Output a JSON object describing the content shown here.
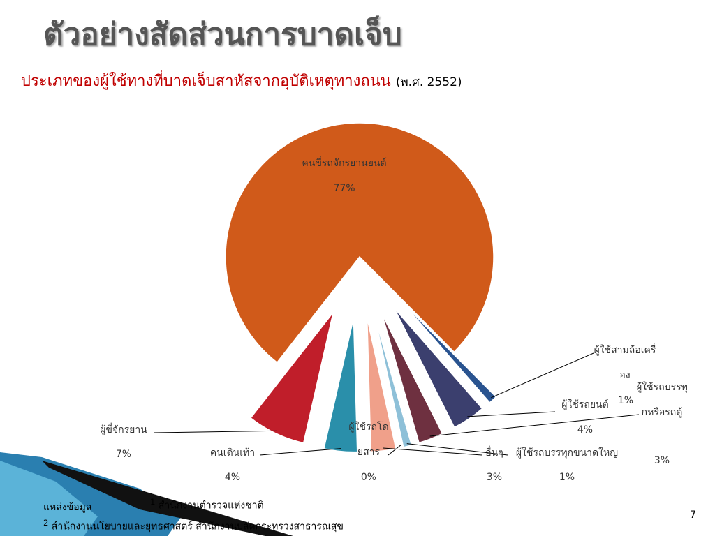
{
  "slide_title": "ตัวอย่างสัดส่วนการบาดเจ็บ",
  "chart_data": {
    "type": "pie",
    "title": "ประเภทของผู้ใช้ทางที่บาดเจ็บสาหัสจากอุบัติเหตุทางถนน",
    "subtitle": "(พ.ศ. 2552)",
    "categories": [
      "คนขี่รถจักรยานยนต์",
      "ผู้ใช้สามล้อเครื่อง",
      "ผู้ใช้รถยนต์",
      "ผู้ใช้รถบรรทุกหรือรถตู้",
      "ผู้ใช้รถบรรทุกขนาดใหญ่",
      "ผู้ใช้รถโดยสาร",
      "อื่นๆ",
      "คนเดินเท้า",
      "ผู้ขี่จักรยาน"
    ],
    "values": [
      77,
      1,
      4,
      3,
      1,
      0,
      3,
      4,
      7
    ],
    "value_labels": [
      "77%",
      "1%",
      "4%",
      "3%",
      "1%",
      "0%",
      "3%",
      "4%",
      "7%"
    ],
    "colors": [
      "#d05a1a",
      "#2a5490",
      "#3b3f6e",
      "#6e3040",
      "#8ec0d8",
      "#8a2020",
      "#f0a08a",
      "#2a8faa",
      "#c01e2a"
    ],
    "start_angle": 218,
    "exploded": true
  },
  "sources": {
    "heading": "แหล่งข้อมูล",
    "items": [
      {
        "number": "1",
        "text": "สำนักงานตำรวจแห่งชาติ"
      },
      {
        "number": "2",
        "text": "สำนักงานนโยบายและยุทธศาสตร์ สำนักงานปลัดกระทรวงสาธารณสุข"
      }
    ]
  },
  "page_number": "7"
}
